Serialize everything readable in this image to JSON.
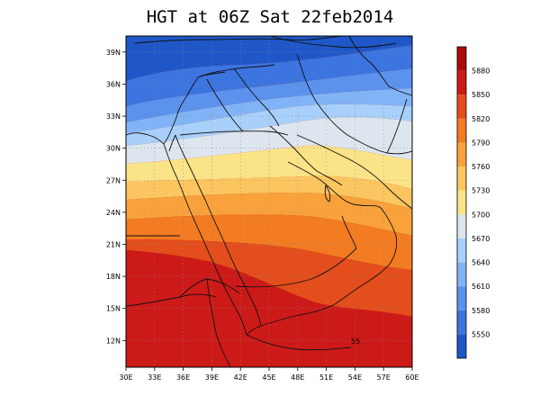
{
  "title": "HGT at 06Z Sat 22feb2014",
  "map": {
    "lon_ticks": [
      "30E",
      "33E",
      "36E",
      "39E",
      "42E",
      "45E",
      "48E",
      "51E",
      "54E",
      "57E",
      "60E"
    ],
    "lat_ticks": [
      "12N",
      "15N",
      "18N",
      "21N",
      "24N",
      "27N",
      "30N",
      "33N",
      "36N",
      "39N"
    ],
    "lon_range": [
      30,
      60
    ],
    "lat_range": [
      9.5,
      40.5
    ],
    "grid": true,
    "label_inside": "55"
  },
  "colorbar": {
    "labels": [
      "5550",
      "5580",
      "5610",
      "5640",
      "5670",
      "5700",
      "5730",
      "5760",
      "5790",
      "5820",
      "5850",
      "5880"
    ],
    "colors": [
      "#1f57c8",
      "#3c74e0",
      "#5b92ee",
      "#81b4f6",
      "#a8d0fa",
      "#dde6ee",
      "#fbe387",
      "#fbc660",
      "#f9a23c",
      "#f37b22",
      "#e44d1c",
      "#cc1a18",
      "#a80a0c"
    ]
  },
  "bands": [
    {
      "level": "5550-5580",
      "color": "#3c74e0"
    },
    {
      "level": "5580-5610",
      "color": "#5b92ee"
    },
    {
      "level": "5610-5640",
      "color": "#81b4f6"
    },
    {
      "level": "5640-5670",
      "color": "#a8d0fa"
    },
    {
      "level": "5670-5700",
      "color": "#dde6ee"
    },
    {
      "level": "5700-5730",
      "color": "#fbe387"
    },
    {
      "level": "5730-5760",
      "color": "#fbc660"
    },
    {
      "level": "5760-5790",
      "color": "#f9a23c"
    },
    {
      "level": "5790-5820",
      "color": "#f37b22"
    },
    {
      "level": "5820-5850",
      "color": "#e44d1c"
    },
    {
      "level": "5850-5880",
      "color": "#cc1a18"
    }
  ]
}
